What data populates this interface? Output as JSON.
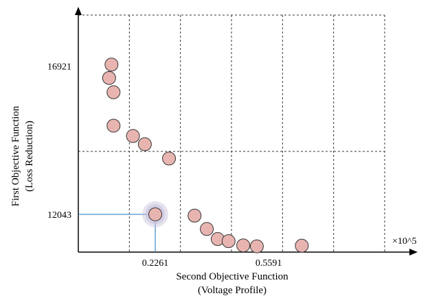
{
  "chart_data": {
    "type": "scatter",
    "title": "",
    "xlabel": [
      "Second Objective Function",
      "(Voltage Profile)"
    ],
    "ylabel": [
      "First Objective Function",
      "(Loss Reduction)"
    ],
    "x_multiplier_label": "×10^5",
    "x_ticks": [
      {
        "value": 0.2261,
        "label": "0.2261"
      },
      {
        "value": 0.5591,
        "label": "0.5591"
      }
    ],
    "y_ticks": [
      {
        "value": 16921,
        "label": "16921"
      },
      {
        "value": 12043,
        "label": "12043"
      }
    ],
    "xlim": [
      0.0,
      0.9
    ],
    "ylim": [
      10800,
      18600
    ],
    "grid": "dashed",
    "colors": {
      "marker_fill": "#e8b4b0",
      "marker_stroke": "#333333",
      "highlight_halo": "#c8c2dc",
      "leader_line": "#4a90c8"
    },
    "selected_point": {
      "x": 0.2261,
      "y": 12043
    },
    "points": [
      {
        "x": 0.0975,
        "y": 16970
      },
      {
        "x": 0.0905,
        "y": 16530
      },
      {
        "x": 0.1035,
        "y": 16060
      },
      {
        "x": 0.1035,
        "y": 14960
      },
      {
        "x": 0.1605,
        "y": 14620
      },
      {
        "x": 0.1955,
        "y": 14350
      },
      {
        "x": 0.2665,
        "y": 13880
      },
      {
        "x": 0.2261,
        "y": 12043
      },
      {
        "x": 0.3415,
        "y": 12000
      },
      {
        "x": 0.3775,
        "y": 11560
      },
      {
        "x": 0.4095,
        "y": 11230
      },
      {
        "x": 0.4415,
        "y": 11160
      },
      {
        "x": 0.4845,
        "y": 11020
      },
      {
        "x": 0.5245,
        "y": 10990
      },
      {
        "x": 0.6565,
        "y": 11010
      }
    ]
  }
}
